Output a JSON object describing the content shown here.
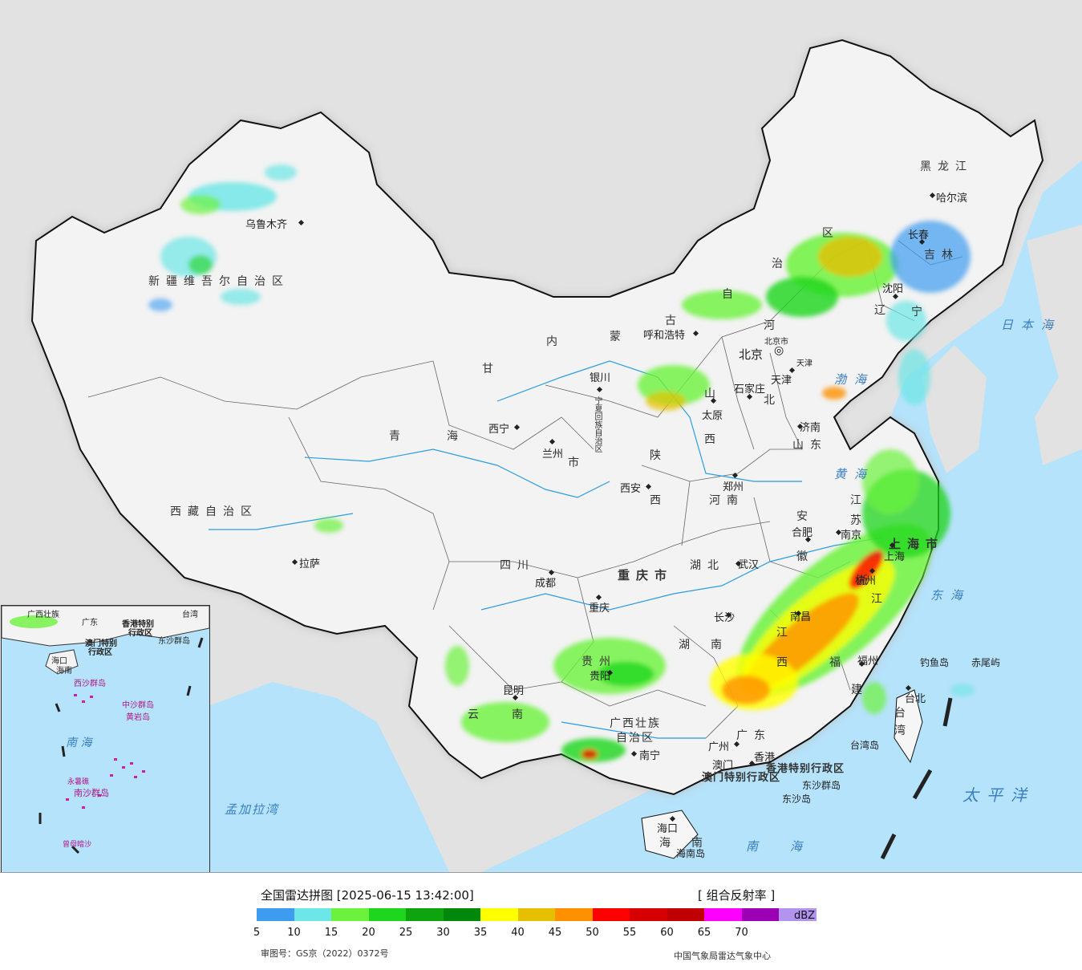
{
  "legend": {
    "title": "全国雷达拼图 [2025-06-15 13:42:00]",
    "product": "[ 组合反射率 ]",
    "unit": "dBZ",
    "review_number": "审图号：GS京（2022）0372号",
    "organization": "中国气象局雷达气象中心",
    "ticks": [
      "5",
      "10",
      "15",
      "20",
      "25",
      "30",
      "35",
      "40",
      "45",
      "50",
      "55",
      "60",
      "65",
      "70"
    ],
    "colors": [
      "#3d9bf0",
      "#6ce6e6",
      "#6cf23c",
      "#1dd61d",
      "#0ea40e",
      "#00880a",
      "#ffff00",
      "#e6c000",
      "#ff9000",
      "#ff0000",
      "#d60000",
      "#c00000",
      "#ff00ff",
      "#9b00b4",
      "#b294ee"
    ]
  },
  "map": {
    "provinces": {
      "xinjiang": "新疆维吾尔自治区",
      "xizang": "西藏自治区",
      "qinghai_1": "青",
      "qinghai_2": "海",
      "gansu": "甘",
      "neimenggu_1": "内",
      "neimenggu_2": "蒙",
      "neimenggu_3": "古",
      "neimenggu_4": "自",
      "neimenggu_5": "治",
      "neimenggu_6": "区",
      "heilongjiang": "黑龙江",
      "jilin": "吉林",
      "liaoning_1": "辽",
      "liaoning_2": "宁",
      "hebei_1": "河",
      "hebei_2": "北",
      "shanxi_1": "山",
      "shanxi_2": "西",
      "shandong": "山东",
      "henan": "河南",
      "shaanxi_1": "陕",
      "shaanxi_2": "西",
      "ningxia": "宁夏回族自治区",
      "gansu_shi": "市",
      "sichuan": "四川",
      "chongqing": "重庆市",
      "hubei": "湖北",
      "hunan_1": "湖",
      "hunan_2": "南",
      "jiangxi_1": "江",
      "jiangxi_2": "西",
      "anhui_1": "安",
      "anhui_2": "徽",
      "jiangsu_1": "江",
      "jiangsu_2": "苏",
      "zhejiang_1": "浙",
      "zhejiang_2": "江",
      "fujian_1": "福",
      "fujian_2": "建",
      "shanghai": "上海市",
      "guizhou": "贵州",
      "yunnan_1": "云",
      "yunnan_2": "南",
      "guangxi_1": "广西壮族",
      "guangxi_2": "自治区",
      "guangdong": "广东",
      "hainan_1": "海",
      "hainan_2": "南",
      "taiwan_1": "台",
      "taiwan_2": "湾",
      "hongkong": "香港特别行政区",
      "macao": "澳门特别行政区"
    },
    "cities": {
      "urumqi": "乌鲁木齐",
      "lhasa": "拉萨",
      "xining": "西宁",
      "lanzhou": "兰州",
      "yinchuan": "银川",
      "hohhot": "呼和浩特",
      "beijing": "北京",
      "beijing_shi": "北京市",
      "tianjin": "天津",
      "tianjin_shi": "天津",
      "shijiazhuang": "石家庄",
      "taiyuan": "太原",
      "jinan": "济南",
      "zhengzhou": "郑州",
      "xian": "西安",
      "chengdu": "成都",
      "chongqing": "重庆",
      "wuhan": "武汉",
      "hefei": "合肥",
      "nanjing": "南京",
      "shanghai": "上海",
      "hangzhou": "杭州",
      "nanchang": "南昌",
      "changsha": "长沙",
      "fuzhou": "福州",
      "taipei": "台北",
      "guiyang": "贵阳",
      "kunming": "昆明",
      "nanning": "南宁",
      "guangzhou": "广州",
      "hongkong": "香港",
      "macao": "澳门",
      "haikou": "海口",
      "harbin": "哈尔滨",
      "changchun": "长春",
      "shenyang": "沈阳"
    },
    "islands": {
      "diaoyu": "钓鱼岛",
      "chiwei": "赤尾屿",
      "taiwan_island": "台湾岛",
      "dongsha_islands": "东沙群岛",
      "dongsha_island": "东沙岛",
      "hainan_island": "海南岛"
    },
    "seas": {
      "bohai": "渤海",
      "sea_of_japan": "日本海",
      "east_china_sea": "东海",
      "pacific": "太平洋",
      "south_china_sea": "南海",
      "bay_of_bengal": "孟加拉湾",
      "huanghai": "黄海"
    },
    "inset": {
      "guangxi": "广西壮族",
      "guangdong": "广东",
      "taiwan": "台湾",
      "hk": "香港特别",
      "hk2": "行政区",
      "macao": "澳门特别",
      "macao2": "行政区",
      "dongsha": "东沙群岛",
      "haikou": "海口",
      "hainan": "海南",
      "xisha": "西沙群岛",
      "zhongsha": "中沙群岛",
      "huangyan": "黄岩岛",
      "south_sea": "南 海",
      "nansha": "南沙群岛",
      "yongshu": "永暑礁",
      "zengmu": "曾母暗沙"
    }
  }
}
